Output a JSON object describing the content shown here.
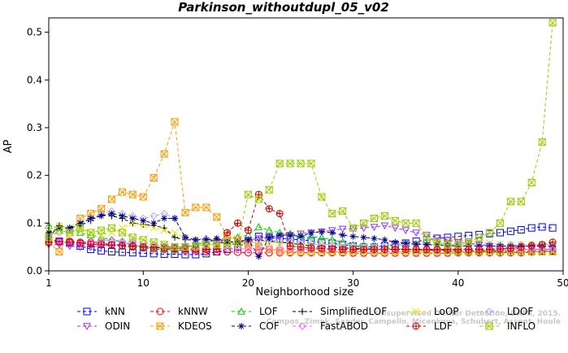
{
  "chart_data": {
    "type": "line",
    "title": "Parkinson_withoutdupl_05_v02",
    "xlabel": "Neighborhood size",
    "ylabel": "AP",
    "xlim": [
      1,
      50
    ],
    "ylim": [
      0,
      0.53
    ],
    "xticks": [
      1,
      10,
      20,
      30,
      40,
      50
    ],
    "yticks": [
      0.0,
      0.1,
      0.2,
      0.3,
      0.4,
      0.5
    ],
    "grid": false,
    "legend_position": "bottom",
    "x": [
      1,
      2,
      3,
      4,
      5,
      6,
      7,
      8,
      9,
      10,
      11,
      12,
      13,
      14,
      15,
      16,
      17,
      18,
      19,
      20,
      21,
      22,
      23,
      24,
      25,
      26,
      27,
      28,
      29,
      30,
      31,
      32,
      33,
      34,
      35,
      36,
      37,
      38,
      39,
      40,
      41,
      42,
      43,
      44,
      45,
      46,
      47,
      48,
      49
    ],
    "series": [
      {
        "name": "kNN",
        "color": "#0000ff",
        "marker": "square",
        "values": [
          0.067,
          0.062,
          0.058,
          0.052,
          0.045,
          0.042,
          0.04,
          0.039,
          0.038,
          0.037,
          0.036,
          0.035,
          0.035,
          0.034,
          0.034,
          0.036,
          0.04,
          0.045,
          0.05,
          0.06,
          0.072,
          0.07,
          0.068,
          0.067,
          0.065,
          0.063,
          0.06,
          0.058,
          0.055,
          0.052,
          0.05,
          0.05,
          0.052,
          0.055,
          0.058,
          0.062,
          0.065,
          0.068,
          0.07,
          0.072,
          0.074,
          0.076,
          0.078,
          0.08,
          0.083,
          0.086,
          0.09,
          0.092,
          0.09
        ]
      },
      {
        "name": "kNNW",
        "color": "#ff0000",
        "marker": "circle",
        "values": [
          0.06,
          0.06,
          0.062,
          0.06,
          0.06,
          0.058,
          0.055,
          0.052,
          0.05,
          0.048,
          0.046,
          0.045,
          0.044,
          0.043,
          0.042,
          0.04,
          0.04,
          0.04,
          0.039,
          0.038,
          0.038,
          0.038,
          0.038,
          0.038,
          0.038,
          0.038,
          0.038,
          0.038,
          0.038,
          0.037,
          0.037,
          0.037,
          0.037,
          0.037,
          0.037,
          0.037,
          0.037,
          0.037,
          0.037,
          0.038,
          0.038,
          0.038,
          0.038,
          0.038,
          0.038,
          0.038,
          0.039,
          0.04,
          0.041
        ]
      },
      {
        "name": "LOF",
        "color": "#00cc00",
        "marker": "triangle",
        "values": [
          0.095,
          0.09,
          0.085,
          0.08,
          0.075,
          0.07,
          0.065,
          0.06,
          0.055,
          0.05,
          0.048,
          0.046,
          0.045,
          0.05,
          0.055,
          0.06,
          0.065,
          0.068,
          0.07,
          0.075,
          0.092,
          0.085,
          0.08,
          0.078,
          0.075,
          0.072,
          0.07,
          0.065,
          0.06,
          0.055,
          0.052,
          0.05,
          0.048,
          0.046,
          0.045,
          0.044,
          0.044,
          0.043,
          0.042,
          0.04,
          0.04,
          0.04,
          0.039,
          0.039,
          0.039,
          0.039,
          0.04,
          0.04,
          0.041
        ]
      },
      {
        "name": "SimplifiedLOF",
        "color": "#000000",
        "marker": "plus",
        "values": [
          0.07,
          0.095,
          0.09,
          0.095,
          0.105,
          0.118,
          0.115,
          0.11,
          0.1,
          0.097,
          0.095,
          0.09,
          0.07,
          0.065,
          0.065,
          0.068,
          0.06,
          0.058,
          0.055,
          0.06,
          0.065,
          0.062,
          0.06,
          0.058,
          0.055,
          0.052,
          0.05,
          0.05,
          0.048,
          0.047,
          0.046,
          0.046,
          0.045,
          0.045,
          0.045,
          0.044,
          0.044,
          0.043,
          0.043,
          0.042,
          0.042,
          0.042,
          0.042,
          0.041,
          0.041,
          0.041,
          0.041,
          0.041,
          0.041
        ]
      },
      {
        "name": "LoOP",
        "color": "#e6e600",
        "marker": "x",
        "values": [
          0.085,
          0.095,
          0.09,
          0.085,
          0.08,
          0.075,
          0.08,
          0.09,
          0.1,
          0.095,
          0.09,
          0.085,
          0.08,
          0.07,
          0.065,
          0.06,
          0.058,
          0.055,
          0.055,
          0.058,
          0.06,
          0.06,
          0.058,
          0.055,
          0.055,
          0.055,
          0.055,
          0.055,
          0.052,
          0.05,
          0.05,
          0.05,
          0.05,
          0.052,
          0.055,
          0.058,
          0.06,
          0.062,
          0.065,
          0.065,
          0.062,
          0.06,
          0.058,
          0.056,
          0.055,
          0.055,
          0.055,
          0.055,
          0.055
        ]
      },
      {
        "name": "LDOF",
        "color": "#aaaaff",
        "marker": "diamond",
        "values": [
          0.075,
          0.08,
          0.085,
          0.095,
          0.11,
          0.12,
          0.125,
          0.12,
          0.115,
          0.11,
          0.115,
          0.12,
          0.11,
          0.07,
          0.065,
          0.068,
          0.065,
          0.062,
          0.06,
          0.058,
          0.06,
          0.065,
          0.062,
          0.06,
          0.058,
          0.056,
          0.055,
          0.055,
          0.055,
          0.055,
          0.055,
          0.055,
          0.055,
          0.055,
          0.055,
          0.055,
          0.055,
          0.055,
          0.055,
          0.055,
          0.055,
          0.055,
          0.055,
          0.055,
          0.055,
          0.055,
          0.055,
          0.055,
          0.055
        ]
      },
      {
        "name": "ODIN",
        "color": "#9933ff",
        "marker": "triangle-down",
        "values": [
          0.055,
          0.055,
          0.052,
          0.05,
          0.05,
          0.052,
          0.055,
          0.055,
          0.055,
          0.052,
          0.05,
          0.05,
          0.05,
          0.05,
          0.052,
          0.055,
          0.058,
          0.06,
          0.062,
          0.065,
          0.068,
          0.07,
          0.072,
          0.075,
          0.078,
          0.08,
          0.082,
          0.085,
          0.088,
          0.088,
          0.09,
          0.092,
          0.095,
          0.09,
          0.085,
          0.08,
          0.075,
          0.07,
          0.065,
          0.06,
          0.058,
          0.055,
          0.052,
          0.05,
          0.048,
          0.046,
          0.045,
          0.045,
          0.045
        ]
      },
      {
        "name": "KDEOS",
        "color": "#ff9900",
        "marker": "square-x",
        "values": [
          0.06,
          0.04,
          0.08,
          0.11,
          0.12,
          0.13,
          0.15,
          0.165,
          0.16,
          0.155,
          0.195,
          0.245,
          0.312,
          0.122,
          0.133,
          0.133,
          0.113,
          0.072,
          0.065,
          0.055,
          0.05,
          0.045,
          0.042,
          0.04,
          0.04,
          0.04,
          0.04,
          0.04,
          0.04,
          0.04,
          0.04,
          0.04,
          0.04,
          0.04,
          0.04,
          0.04,
          0.04,
          0.04,
          0.04,
          0.04,
          0.04,
          0.04,
          0.04,
          0.04,
          0.04,
          0.04,
          0.04,
          0.04,
          0.04
        ]
      },
      {
        "name": "COF",
        "color": "#000080",
        "marker": "star",
        "values": [
          0.08,
          0.09,
          0.09,
          0.1,
          0.11,
          0.115,
          0.12,
          0.115,
          0.11,
          0.105,
          0.1,
          0.11,
          0.11,
          0.07,
          0.065,
          0.065,
          0.068,
          0.06,
          0.06,
          0.065,
          0.03,
          0.07,
          0.075,
          0.075,
          0.072,
          0.08,
          0.082,
          0.08,
          0.075,
          0.072,
          0.07,
          0.068,
          0.065,
          0.06,
          0.058,
          0.056,
          0.055,
          0.054,
          0.053,
          0.052,
          0.052,
          0.052,
          0.052,
          0.052,
          0.052,
          0.052,
          0.052,
          0.052,
          0.052
        ]
      },
      {
        "name": "FastABOD",
        "color": "#ff66ff",
        "marker": "diamond",
        "values": [
          0.06,
          0.062,
          0.06,
          0.058,
          0.06,
          0.062,
          0.065,
          0.062,
          0.06,
          0.058,
          0.055,
          0.052,
          0.05,
          0.048,
          0.047,
          0.046,
          0.046,
          0.046,
          0.046,
          0.046,
          0.046,
          0.046,
          0.046,
          0.046,
          0.045,
          0.045,
          0.045,
          0.045,
          0.045,
          0.045,
          0.045,
          0.045,
          0.045,
          0.045,
          0.045,
          0.045,
          0.045,
          0.045,
          0.045,
          0.045,
          0.045,
          0.045,
          0.045,
          0.045,
          0.045,
          0.045,
          0.045,
          0.045,
          0.045
        ]
      },
      {
        "name": "LDF",
        "color": "#cc0000",
        "marker": "circle-plus",
        "values": [
          0.06,
          0.062,
          0.06,
          0.058,
          0.056,
          0.055,
          0.054,
          0.053,
          0.052,
          0.05,
          0.049,
          0.048,
          0.047,
          0.046,
          0.045,
          0.045,
          0.045,
          0.08,
          0.1,
          0.085,
          0.16,
          0.13,
          0.12,
          0.052,
          0.05,
          0.048,
          0.047,
          0.046,
          0.045,
          0.045,
          0.045,
          0.045,
          0.045,
          0.045,
          0.045,
          0.045,
          0.045,
          0.045,
          0.045,
          0.045,
          0.045,
          0.045,
          0.045,
          0.046,
          0.047,
          0.05,
          0.053,
          0.055,
          0.06
        ]
      },
      {
        "name": "INFLO",
        "color": "#99cc00",
        "marker": "hourglass",
        "values": [
          0.07,
          0.085,
          0.08,
          0.09,
          0.08,
          0.085,
          0.09,
          0.08,
          0.07,
          0.065,
          0.06,
          0.055,
          0.05,
          0.05,
          0.052,
          0.055,
          0.055,
          0.055,
          0.058,
          0.16,
          0.15,
          0.17,
          0.225,
          0.225,
          0.225,
          0.225,
          0.155,
          0.12,
          0.125,
          0.09,
          0.1,
          0.11,
          0.115,
          0.105,
          0.1,
          0.1,
          0.07,
          0.06,
          0.055,
          0.055,
          0.06,
          0.07,
          0.08,
          0.1,
          0.145,
          0.145,
          0.185,
          0.27,
          0.52
        ]
      }
    ],
    "watermark": [
      "Campos, Zimek, Sander, Campello, Micenkova, Schubert, Assent, Houle",
      "Unsupervised Outlier Detection, DAMI, 2015."
    ]
  }
}
